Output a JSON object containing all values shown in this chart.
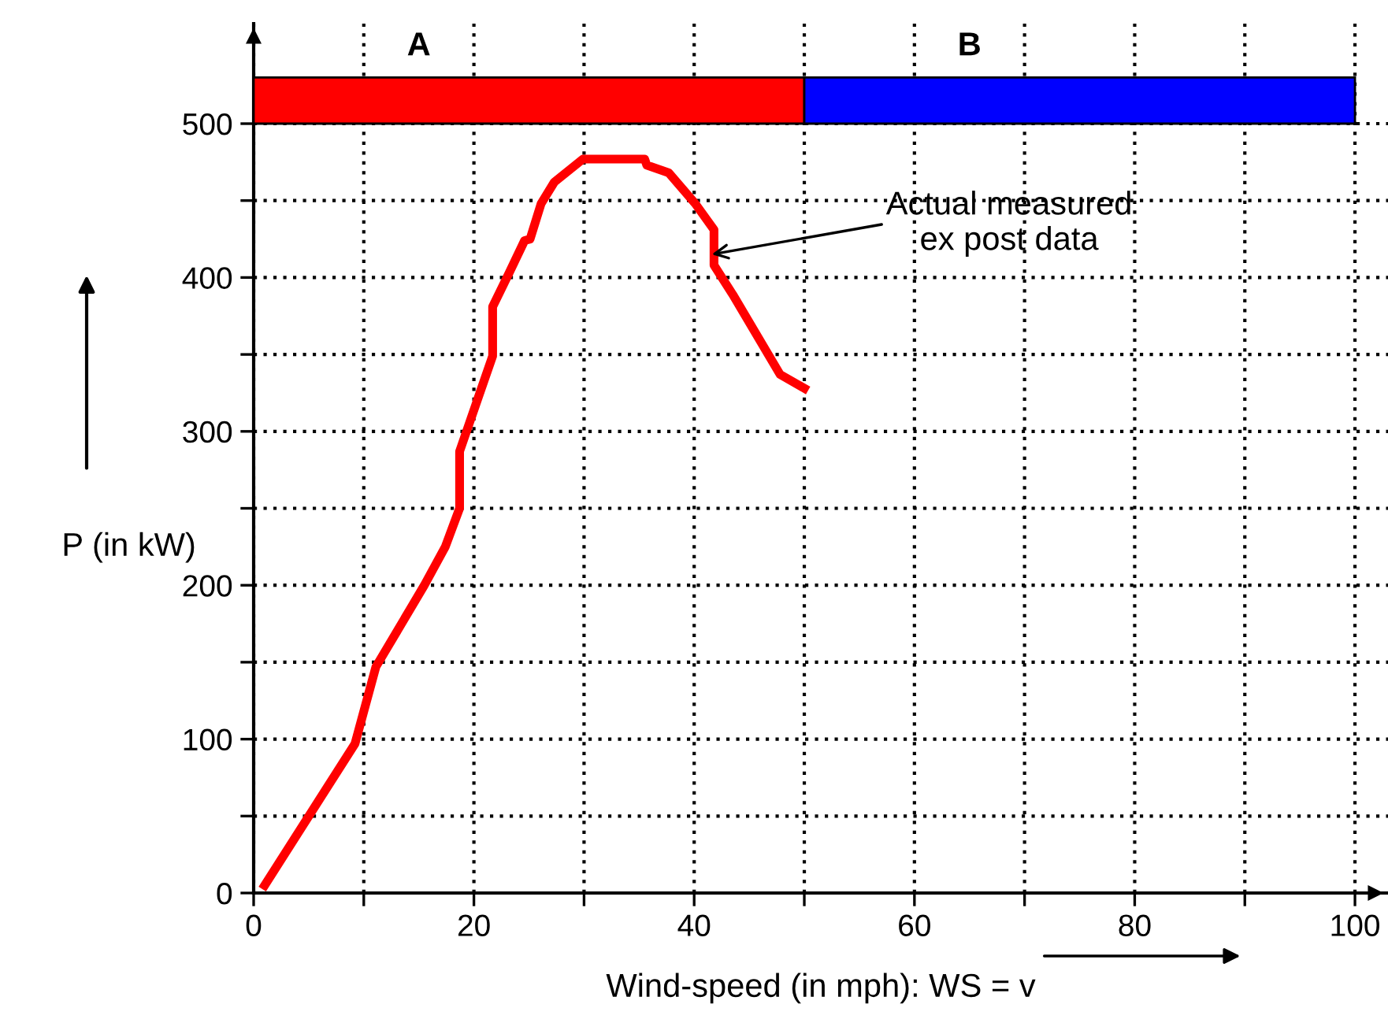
{
  "chart_data": {
    "type": "line",
    "xlabel": "Wind-speed (in mph): WS = v",
    "ylabel": "P (in kW)",
    "x": [
      1,
      9.2,
      11.1,
      15.5,
      17.4,
      18.7,
      18.7,
      21.7,
      21.7,
      23.2,
      24.6,
      25.1,
      26.1,
      27.3,
      29.9,
      35.5,
      35.7,
      37.7,
      40.1,
      41.8,
      41.8,
      43.5,
      47.8,
      50
    ],
    "series": [
      {
        "color": "#ff0000",
        "values": [
          5,
          97,
          147,
          200,
          225,
          250,
          287,
          349,
          381,
          403,
          424,
          425,
          448,
          462,
          477,
          477,
          473,
          468,
          448,
          431,
          408,
          389,
          337,
          328
        ]
      }
    ],
    "xlim": [
      0,
      103
    ],
    "ylim": [
      0,
      565
    ],
    "xticks": [
      0,
      20,
      40,
      60,
      80,
      100
    ],
    "yticks": [
      0,
      100,
      200,
      300,
      400,
      500
    ],
    "grid": true,
    "line_style": "solid",
    "marker": "none",
    "bands": [
      {
        "axis": "x",
        "from": 0,
        "to": 50,
        "label": "A",
        "color": "#ff0000"
      },
      {
        "axis": "x",
        "from": 50,
        "to": 100,
        "label": "B",
        "color": "#0000ff"
      }
    ],
    "annotations": [
      {
        "text": "Actual measured\nex post data",
        "x": 41.6,
        "y": 415
      }
    ]
  }
}
